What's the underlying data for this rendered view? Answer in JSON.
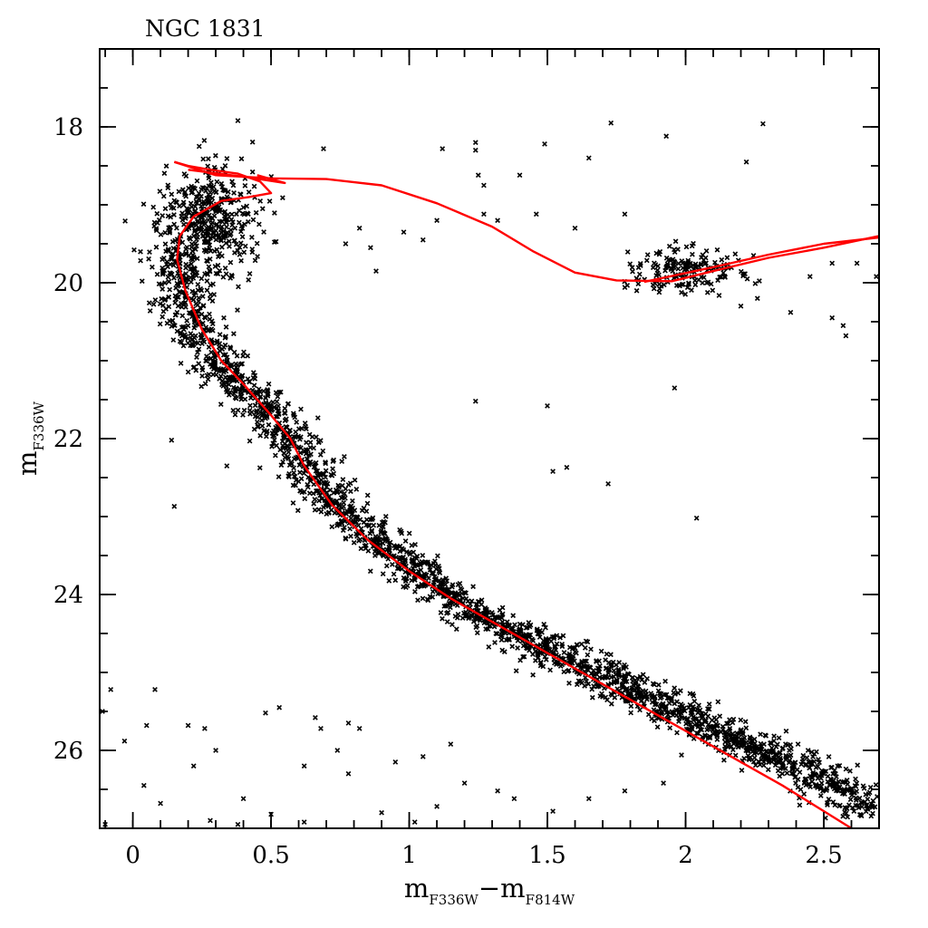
{
  "chart_data": {
    "type": "scatter",
    "title": "NGC 1831",
    "xlabel": {
      "main": "m",
      "sub1": "F336W",
      "minus": "−",
      "main2": "m",
      "sub2": "F814W"
    },
    "ylabel": {
      "main": "m",
      "sub": "F336W"
    },
    "xlim": [
      -0.12,
      2.7
    ],
    "ylim": [
      27.0,
      17.0
    ],
    "y_inverted": true,
    "x_ticks": [
      0,
      0.5,
      1,
      1.5,
      2,
      2.5
    ],
    "x_tick_labels": [
      "0",
      "0.5",
      "1",
      "1.5",
      "2",
      "2.5"
    ],
    "y_ticks": [
      18,
      20,
      22,
      24,
      26
    ],
    "y_tick_labels": [
      "18",
      "20",
      "22",
      "24",
      "26"
    ],
    "x_minor_step": 0.1,
    "y_minor_step": 0.5,
    "grid": false,
    "marker": "x",
    "marker_color": "#000000",
    "isochrone_color": "#ff0000",
    "main_sequence_ridge": [
      [
        0.16,
        19.6
      ],
      [
        0.17,
        19.9
      ],
      [
        0.19,
        20.2
      ],
      [
        0.22,
        20.5
      ],
      [
        0.26,
        20.8
      ],
      [
        0.33,
        21.1
      ],
      [
        0.42,
        21.4
      ],
      [
        0.52,
        21.75
      ],
      [
        0.58,
        22.05
      ],
      [
        0.64,
        22.4
      ],
      [
        0.72,
        22.75
      ],
      [
        0.82,
        23.1
      ],
      [
        0.95,
        23.5
      ],
      [
        1.1,
        23.9
      ],
      [
        1.25,
        24.25
      ],
      [
        1.45,
        24.6
      ],
      [
        1.65,
        24.95
      ],
      [
        1.85,
        25.3
      ],
      [
        2.05,
        25.65
      ],
      [
        2.25,
        25.95
      ],
      [
        2.45,
        26.3
      ],
      [
        2.6,
        26.6
      ],
      [
        2.68,
        26.85
      ]
    ],
    "isochrone_ms": [
      [
        2.6,
        27.0
      ],
      [
        2.35,
        26.45
      ],
      [
        2.1,
        25.95
      ],
      [
        1.9,
        25.55
      ],
      [
        1.7,
        25.15
      ],
      [
        1.5,
        24.75
      ],
      [
        1.3,
        24.35
      ],
      [
        1.15,
        24.05
      ],
      [
        1.0,
        23.7
      ],
      [
        0.85,
        23.3
      ],
      [
        0.72,
        22.85
      ],
      [
        0.62,
        22.35
      ],
      [
        0.57,
        22.0
      ],
      [
        0.5,
        21.7
      ],
      [
        0.4,
        21.3
      ],
      [
        0.32,
        21.0
      ],
      [
        0.25,
        20.6
      ],
      [
        0.19,
        20.1
      ],
      [
        0.16,
        19.7
      ],
      [
        0.17,
        19.4
      ],
      [
        0.22,
        19.15
      ],
      [
        0.32,
        18.95
      ],
      [
        0.42,
        18.9
      ],
      [
        0.5,
        18.85
      ],
      [
        0.46,
        18.7
      ],
      [
        0.38,
        18.6
      ],
      [
        0.28,
        18.55
      ],
      [
        0.2,
        18.5
      ],
      [
        0.15,
        18.45
      ]
    ],
    "isochrone_giant": [
      [
        0.15,
        18.45
      ],
      [
        0.3,
        18.62
      ],
      [
        0.5,
        18.66
      ],
      [
        0.7,
        18.67
      ],
      [
        0.9,
        18.75
      ],
      [
        1.1,
        18.98
      ],
      [
        1.3,
        19.28
      ],
      [
        1.45,
        19.6
      ],
      [
        1.6,
        19.87
      ],
      [
        1.75,
        19.97
      ],
      [
        1.95,
        19.98
      ],
      [
        2.1,
        19.85
      ],
      [
        2.3,
        19.68
      ],
      [
        2.5,
        19.55
      ],
      [
        2.7,
        19.4
      ]
    ],
    "isochrone_giant_2": [
      [
        0.2,
        18.55
      ],
      [
        0.4,
        18.64
      ],
      [
        0.55,
        18.72
      ],
      [
        0.45,
        18.62
      ],
      [
        1.85,
        19.99
      ],
      [
        2.1,
        19.8
      ],
      [
        2.3,
        19.64
      ],
      [
        2.5,
        19.5
      ],
      [
        2.7,
        19.42
      ]
    ],
    "red_clump": {
      "x_center": 2.0,
      "y_center": 19.85,
      "x_spread": 0.1,
      "y_spread": 0.25,
      "count": 170
    },
    "scattered_points": [
      [
        0.38,
        17.92
      ],
      [
        0.24,
        18.25
      ],
      [
        0.69,
        18.28
      ],
      [
        1.12,
        18.28
      ],
      [
        1.24,
        18.2
      ],
      [
        1.24,
        18.3
      ],
      [
        1.49,
        18.22
      ],
      [
        1.73,
        17.95
      ],
      [
        1.93,
        18.12
      ],
      [
        2.28,
        17.96
      ],
      [
        1.65,
        18.4
      ],
      [
        2.22,
        18.45
      ],
      [
        1.25,
        18.62
      ],
      [
        1.4,
        18.62
      ],
      [
        1.27,
        18.75
      ],
      [
        0.77,
        19.5
      ],
      [
        0.86,
        19.55
      ],
      [
        1.27,
        19.12
      ],
      [
        1.32,
        19.2
      ],
      [
        1.46,
        19.12
      ],
      [
        1.6,
        19.3
      ],
      [
        1.78,
        19.12
      ],
      [
        1.05,
        19.45
      ],
      [
        0.98,
        19.35
      ],
      [
        1.1,
        19.2
      ],
      [
        0.82,
        19.3
      ],
      [
        0.88,
        19.85
      ],
      [
        2.53,
        19.75
      ],
      [
        2.62,
        19.75
      ],
      [
        2.45,
        19.92
      ],
      [
        2.38,
        20.38
      ],
      [
        2.53,
        20.45
      ],
      [
        2.57,
        20.55
      ],
      [
        2.58,
        20.68
      ],
      [
        2.69,
        19.92
      ],
      [
        2.2,
        20.3
      ],
      [
        2.26,
        20.2
      ],
      [
        1.96,
        21.35
      ],
      [
        1.24,
        21.52
      ],
      [
        1.5,
        21.58
      ],
      [
        0.14,
        22.02
      ],
      [
        0.15,
        22.87
      ],
      [
        1.52,
        22.42
      ],
      [
        1.57,
        22.37
      ],
      [
        1.72,
        22.58
      ],
      [
        2.04,
        23.02
      ],
      [
        0.34,
        22.35
      ],
      [
        0.69,
        22.88
      ],
      [
        -0.08,
        25.22
      ],
      [
        -0.11,
        25.5
      ],
      [
        -0.03,
        25.88
      ],
      [
        0.05,
        25.68
      ],
      [
        0.08,
        25.22
      ],
      [
        0.2,
        25.68
      ],
      [
        0.26,
        25.72
      ],
      [
        0.3,
        26.0
      ],
      [
        0.22,
        26.2
      ],
      [
        0.04,
        26.45
      ],
      [
        0.1,
        26.68
      ],
      [
        0.48,
        25.52
      ],
      [
        0.53,
        25.45
      ],
      [
        0.66,
        25.58
      ],
      [
        0.68,
        25.72
      ],
      [
        0.78,
        25.65
      ],
      [
        0.82,
        25.72
      ],
      [
        0.74,
        26.0
      ],
      [
        0.62,
        26.2
      ],
      [
        0.78,
        26.3
      ],
      [
        0.95,
        26.15
      ],
      [
        1.05,
        26.08
      ],
      [
        1.15,
        25.92
      ],
      [
        1.2,
        26.42
      ],
      [
        1.32,
        26.52
      ],
      [
        1.38,
        26.62
      ],
      [
        1.52,
        26.78
      ],
      [
        1.65,
        26.62
      ],
      [
        1.78,
        26.52
      ],
      [
        1.92,
        26.42
      ],
      [
        0.4,
        26.62
      ],
      [
        0.5,
        26.82
      ],
      [
        0.62,
        26.92
      ],
      [
        0.9,
        26.8
      ],
      [
        1.02,
        26.92
      ],
      [
        1.1,
        26.72
      ],
      [
        0.28,
        26.9
      ],
      [
        0.38,
        26.95
      ],
      [
        -0.1,
        26.95
      ],
      [
        2.35,
        26.3
      ],
      [
        2.55,
        26.2
      ]
    ]
  }
}
